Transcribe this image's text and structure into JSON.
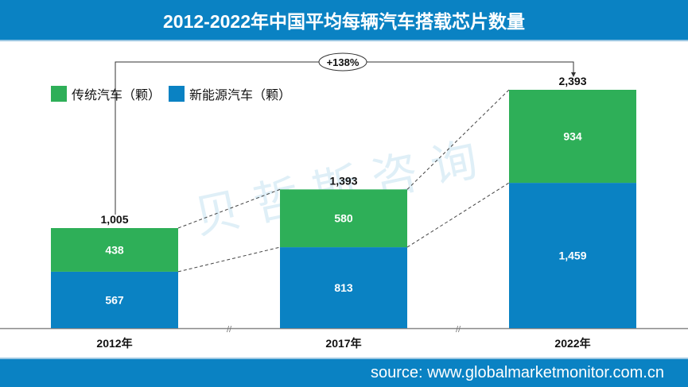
{
  "header": {
    "title": "2012-2022年中国平均每辆汽车搭载芯片数量"
  },
  "footer": {
    "source": "source: www.globalmarketmonitor.com.cn"
  },
  "watermark": "贝哲斯咨询",
  "colors": {
    "traditional": "#2eaf58",
    "nev": "#0a82c3",
    "header": "#0a82c3"
  },
  "chart_data": {
    "type": "bar",
    "stacked": true,
    "title": "2012-2022年中国平均每辆汽车搭载芯片数量",
    "categories": [
      "2012年",
      "2017年",
      "2022年"
    ],
    "series": [
      {
        "name": "新能源汽车（颗）",
        "values": [
          567,
          813,
          1459
        ]
      },
      {
        "name": "传统汽车（颗）",
        "values": [
          438,
          580,
          934
        ]
      }
    ],
    "totals": [
      "1,005",
      "1,393",
      "2,393"
    ],
    "series_labels": [
      [
        "567",
        "813",
        "1,459"
      ],
      [
        "438",
        "580",
        "934"
      ]
    ],
    "legend": [
      "传统汽车（颗）",
      "新能源汽车（颗）"
    ],
    "legend_placement": "top-left",
    "growth_annotation": "+138%",
    "ylim": [
      0,
      2393
    ],
    "grid": false
  }
}
